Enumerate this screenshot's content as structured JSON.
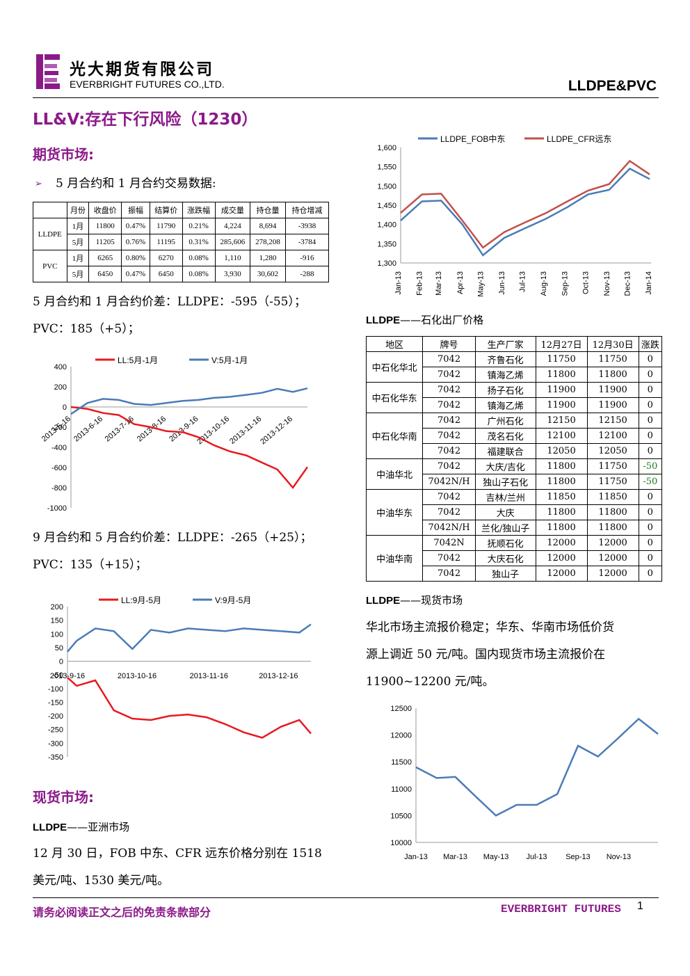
{
  "header": {
    "company_cn": "光大期货有限公司",
    "company_en": "EVERBRIGHT FUTURES CO.,LTD.",
    "doc_tag": "LLDPE&PVC"
  },
  "title": "LL&V:存在下行风险（1230）",
  "futures": {
    "heading": "期货市场:",
    "bullet": "5 月合约和 1 月合约交易数据:",
    "table": {
      "headers": [
        "",
        "月份",
        "收盘价",
        "振幅",
        "结算价",
        "涨跌幅",
        "成交量",
        "持仓量",
        "持仓增减"
      ],
      "groups": [
        {
          "name": "LLDPE",
          "rows": [
            [
              "1月",
              "11800",
              "0.47%",
              "11790",
              "0.21%",
              "4,224",
              "8,694",
              "-3938"
            ],
            [
              "5月",
              "11205",
              "0.76%",
              "11195",
              "0.31%",
              "285,606",
              "278,208",
              "-3784"
            ]
          ]
        },
        {
          "name": "PVC",
          "rows": [
            [
              "1月",
              "6265",
              "0.80%",
              "6270",
              "0.08%",
              "1,110",
              "1,280",
              "-916"
            ],
            [
              "5月",
              "6450",
              "0.47%",
              "6450",
              "0.08%",
              "3,930",
              "30,602",
              "-288"
            ]
          ]
        }
      ]
    },
    "spread1_line1": "5 月合约和 1 月合约价差：LLDPE：-595（-55）；",
    "spread1_line2": "PVC：185（+5）；",
    "spread2_line1": "9 月合约和 5 月合约价差：LLDPE：-265（+25）；",
    "spread2_line2": "PVC：135（+15）；"
  },
  "spot": {
    "heading": "现货市场:",
    "asia_label": "LLDPE",
    "asia_suffix": "——亚洲市场",
    "asia_line1": "12 月 30 日，FOB 中东、CFR 远东价格分别在 1518",
    "asia_line2": "美元/吨、1530 美元/吨。",
    "petro_label": "LLDPE",
    "petro_suffix": "——石化出厂价格",
    "petro_table": {
      "headers": [
        "地区",
        "牌号",
        "生产厂家",
        "12月27日",
        "12月30日",
        "涨跌"
      ],
      "groups": [
        {
          "region": "中石化华北",
          "rows": [
            [
              "7042",
              "齐鲁石化",
              "11750",
              "11750",
              "0"
            ],
            [
              "7042",
              "镇海乙烯",
              "11800",
              "11800",
              "0"
            ]
          ]
        },
        {
          "region": "中石化华东",
          "rows": [
            [
              "7042",
              "扬子石化",
              "11900",
              "11900",
              "0"
            ],
            [
              "7042",
              "镇海乙烯",
              "11900",
              "11900",
              "0"
            ]
          ]
        },
        {
          "region": "中石化华南",
          "rows": [
            [
              "7042",
              "广州石化",
              "12150",
              "12150",
              "0"
            ],
            [
              "7042",
              "茂名石化",
              "12100",
              "12100",
              "0"
            ],
            [
              "7042",
              "福建联合",
              "12050",
              "12050",
              "0"
            ]
          ]
        },
        {
          "region": "中油华北",
          "rows": [
            [
              "7042",
              "大庆/吉化",
              "11800",
              "11750",
              "-50"
            ],
            [
              "7042N/H",
              "独山子石化",
              "11800",
              "11750",
              "-50"
            ]
          ]
        },
        {
          "region": "中油华东",
          "rows": [
            [
              "7042",
              "吉林/兰州",
              "11850",
              "11850",
              "0"
            ],
            [
              "7042",
              "大庆",
              "11800",
              "11800",
              "0"
            ],
            [
              "7042N/H",
              "兰化/独山子",
              "11800",
              "11800",
              "0"
            ]
          ]
        },
        {
          "region": "中油华南",
          "rows": [
            [
              "7042N",
              "抚顺石化",
              "12000",
              "12000",
              "0"
            ],
            [
              "7042",
              "大庆石化",
              "12000",
              "12000",
              "0"
            ],
            [
              "7042",
              "独山子",
              "12000",
              "12000",
              "0"
            ]
          ]
        }
      ]
    },
    "market_label": "LLDPE",
    "market_suffix": "——现货市场",
    "market_line1": "华北市场主流报价稳定；华东、华南市场低价货",
    "market_line2": "源上调近 50 元/吨。国内现货市场主流报价在",
    "market_line3": "11900~12200 元/吨。"
  },
  "footer": {
    "disclaimer": "请务必阅读正文之后的免责条款部分",
    "brand": "EVERBRIGHT FUTURES",
    "page": "1"
  },
  "colors": {
    "accent": "#8b1a89",
    "red_series": "#e8191e",
    "blue_series": "#4a7bb7",
    "green_neg": "#1a7a1a"
  },
  "chart_data": [
    {
      "type": "line",
      "title": "",
      "series": [
        {
          "name": "LL:5月-1月",
          "color": "#e8191e",
          "x": [
            "2013-05-16",
            "2013-06-01",
            "2013-06-16",
            "2013-07-01",
            "2013-07-16",
            "2013-08-01",
            "2013-08-16",
            "2013-09-01",
            "2013-09-16",
            "2013-10-01",
            "2013-10-16",
            "2013-11-01",
            "2013-11-16",
            "2013-12-01",
            "2013-12-16",
            "2013-12-30"
          ],
          "values": [
            0,
            -20,
            -60,
            -80,
            -170,
            -200,
            -240,
            -250,
            -300,
            -380,
            -440,
            -480,
            -550,
            -620,
            -800,
            -595
          ]
        },
        {
          "name": "V:5月-1月",
          "color": "#4a7bb7",
          "x": [
            "2013-05-16",
            "2013-06-01",
            "2013-06-16",
            "2013-07-01",
            "2013-07-16",
            "2013-08-01",
            "2013-08-16",
            "2013-09-01",
            "2013-09-16",
            "2013-10-01",
            "2013-10-16",
            "2013-11-01",
            "2013-11-16",
            "2013-12-01",
            "2013-12-16",
            "2013-12-30"
          ],
          "values": [
            -70,
            40,
            80,
            70,
            30,
            20,
            40,
            60,
            70,
            90,
            100,
            120,
            140,
            180,
            150,
            185
          ]
        }
      ],
      "x_ticks": [
        "2013-5-16",
        "2013-6-16",
        "2013-7-16",
        "2013-8-16",
        "2013-9-16",
        "2013-10-16",
        "2013-11-16",
        "2013-12-16"
      ],
      "y_ticks": [
        400,
        200,
        0,
        -200,
        -400,
        -600,
        -800,
        -1000
      ],
      "ylim": [
        -1000,
        400
      ]
    },
    {
      "type": "line",
      "title": "",
      "series": [
        {
          "name": "LL:9月-5月",
          "color": "#e8191e",
          "x": [
            "2013-09-16",
            "2013-09-20",
            "2013-09-28",
            "2013-10-06",
            "2013-10-14",
            "2013-10-22",
            "2013-10-30",
            "2013-11-07",
            "2013-11-15",
            "2013-11-23",
            "2013-12-01",
            "2013-12-09",
            "2013-12-17",
            "2013-12-25",
            "2013-12-30"
          ],
          "values": [
            -60,
            -90,
            -70,
            -180,
            -210,
            -215,
            -200,
            -195,
            -205,
            -230,
            -260,
            -280,
            -240,
            -215,
            -265
          ]
        },
        {
          "name": "V:9月-5月",
          "color": "#4a7bb7",
          "x": [
            "2013-09-16",
            "2013-09-20",
            "2013-09-28",
            "2013-10-06",
            "2013-10-14",
            "2013-10-22",
            "2013-10-30",
            "2013-11-07",
            "2013-11-15",
            "2013-11-23",
            "2013-12-01",
            "2013-12-09",
            "2013-12-17",
            "2013-12-25",
            "2013-12-30"
          ],
          "values": [
            35,
            75,
            120,
            110,
            45,
            115,
            105,
            120,
            115,
            110,
            120,
            115,
            110,
            105,
            135
          ]
        }
      ],
      "x_ticks": [
        "2013-9-16",
        "2013-10-16",
        "2013-11-16",
        "2013-12-16"
      ],
      "y_ticks": [
        200,
        150,
        100,
        50,
        0,
        -50,
        -100,
        -150,
        -200,
        -250,
        -300,
        -350
      ],
      "ylim": [
        -350,
        200
      ]
    },
    {
      "type": "line",
      "title": "",
      "series": [
        {
          "name": "LLDPE_FOB中东",
          "color": "#4a7bb7",
          "x": [
            "2013-01",
            "2013-02",
            "2013-03",
            "2013-04",
            "2013-05",
            "2013-06",
            "2013-07",
            "2013-08",
            "2013-09",
            "2013-10",
            "2013-11",
            "2013-12",
            "2013-12-30"
          ],
          "values": [
            1410,
            1460,
            1462,
            1400,
            1320,
            1365,
            1390,
            1415,
            1445,
            1478,
            1490,
            1545,
            1518
          ]
        },
        {
          "name": "LLDPE_CFR远东",
          "color": "#c0504d",
          "x": [
            "2013-01",
            "2013-02",
            "2013-03",
            "2013-04",
            "2013-05",
            "2013-06",
            "2013-07",
            "2013-08",
            "2013-09",
            "2013-10",
            "2013-11",
            "2013-12",
            "2013-12-30"
          ],
          "values": [
            1430,
            1478,
            1480,
            1410,
            1340,
            1380,
            1405,
            1430,
            1460,
            1488,
            1505,
            1565,
            1530
          ]
        }
      ],
      "x_ticks": [
        "Jan-13",
        "Feb-13",
        "Mar-13",
        "Apr-13",
        "May-13",
        "Jun-13",
        "Jul-13",
        "Aug-13",
        "Sep-13",
        "Oct-13",
        "Nov-13",
        "Dec-13",
        "Jan-14"
      ],
      "y_ticks": [
        "1,600",
        "1,550",
        "1,500",
        "1,450",
        "1,400",
        "1,350",
        "1,300"
      ],
      "ylim": [
        1300,
        1600
      ]
    },
    {
      "type": "line",
      "title": "",
      "series": [
        {
          "name": "",
          "color": "#4a7bb7",
          "x": [
            "2013-01",
            "2013-02",
            "2013-03",
            "2013-04",
            "2013-05",
            "2013-06",
            "2013-07",
            "2013-08",
            "2013-09",
            "2013-10",
            "2013-11",
            "2013-12",
            "2013-12-30"
          ],
          "values": [
            11400,
            11200,
            11220,
            10850,
            10500,
            10700,
            10700,
            10900,
            11800,
            11600,
            11950,
            12300,
            12020
          ]
        }
      ],
      "x_ticks": [
        "Jan-13",
        "Mar-13",
        "May-13",
        "Jul-13",
        "Sep-13",
        "Nov-13"
      ],
      "y_ticks": [
        12500,
        12000,
        11500,
        11000,
        10500,
        10000
      ],
      "ylim": [
        10000,
        12500
      ]
    }
  ]
}
